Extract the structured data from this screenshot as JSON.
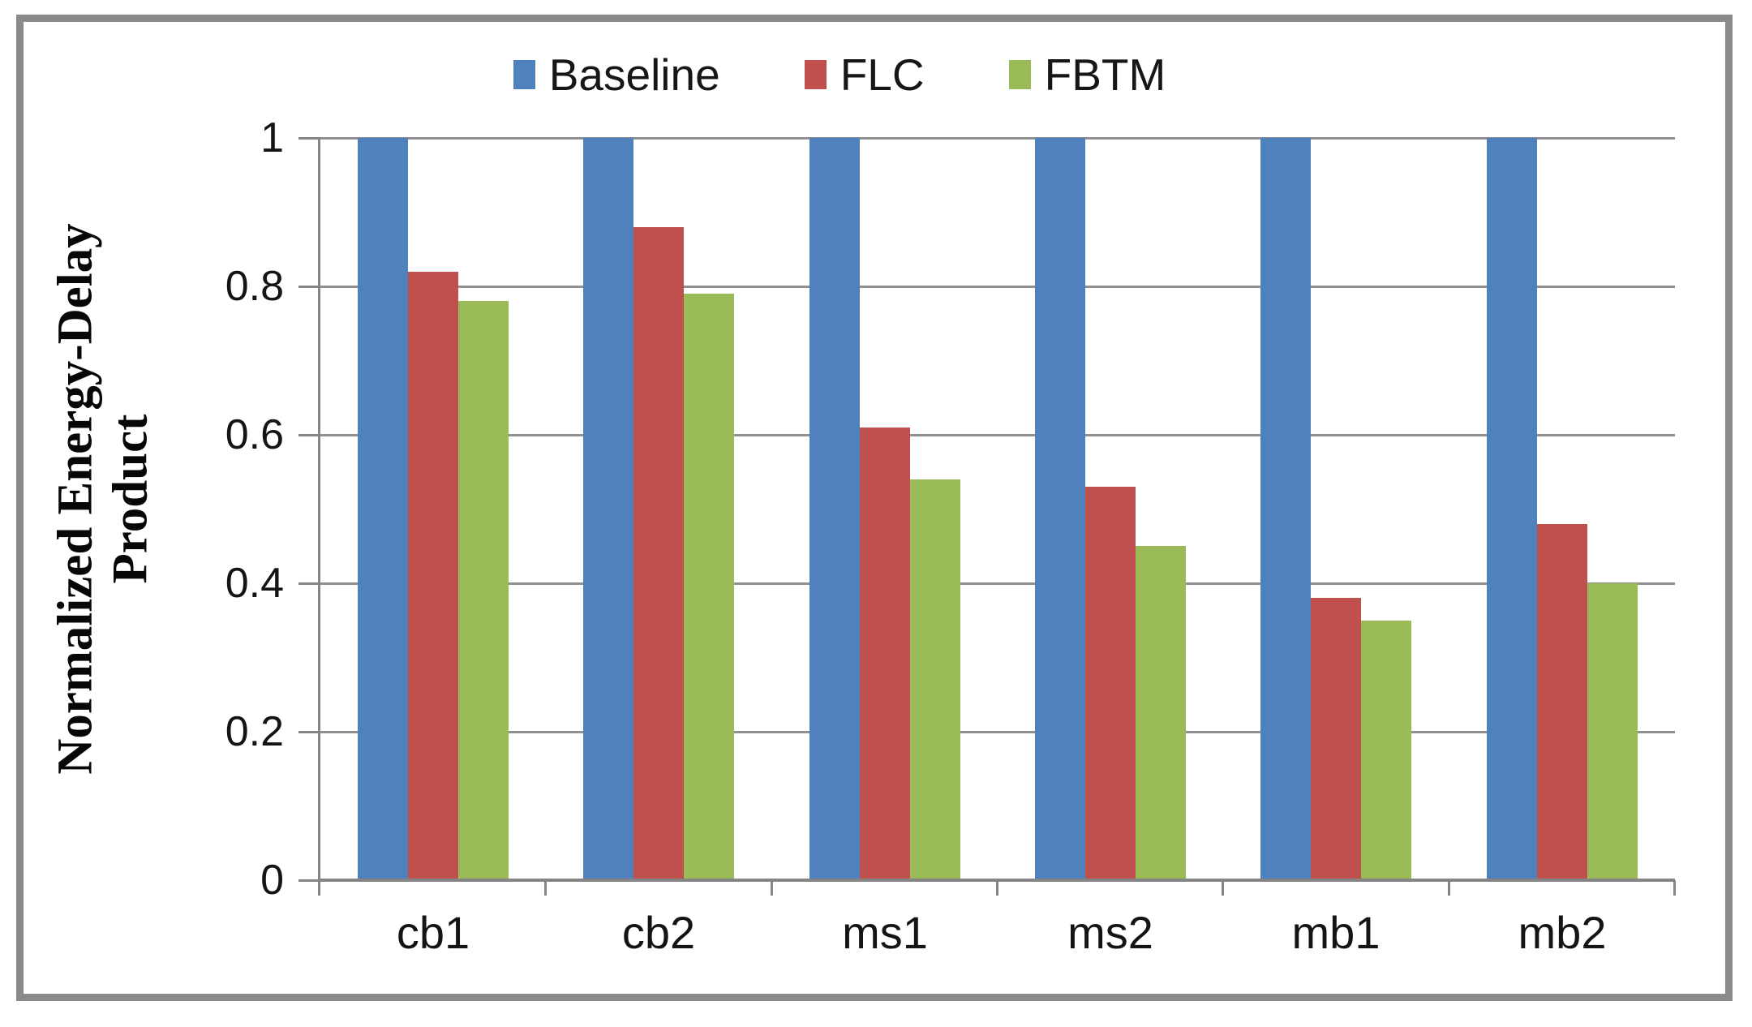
{
  "chart_data": {
    "type": "bar",
    "title": "",
    "categories": [
      "cb1",
      "cb2",
      "ms1",
      "ms2",
      "mb1",
      "mb2"
    ],
    "series": [
      {
        "name": "Baseline",
        "color": "#4F81BD",
        "values": [
          1,
          1,
          1,
          1,
          1,
          1
        ]
      },
      {
        "name": "FLC",
        "color": "#C0504D",
        "values": [
          0.82,
          0.88,
          0.61,
          0.53,
          0.38,
          0.48
        ]
      },
      {
        "name": "FBTM",
        "color": "#9BBB59",
        "values": [
          0.78,
          0.79,
          0.54,
          0.45,
          0.35,
          0.4
        ]
      }
    ],
    "xlabel": "",
    "ylabel": "Normalized Energy-Delay Product",
    "ylabel_lines": [
      "Normalized Energy-Delay",
      "Product"
    ],
    "ylim": [
      0,
      1
    ],
    "yticks": [
      0,
      0.2,
      0.4,
      0.6,
      0.8,
      1
    ],
    "ytick_labels": [
      "0",
      "0.2",
      "0.4",
      "0.6",
      "0.8",
      "1"
    ],
    "grid": true,
    "legend_position": "top"
  },
  "colors": {
    "baseline_blue": "#4F81BD",
    "flc_red": "#C0504D",
    "fbtm_green": "#9BBB59",
    "gridline_gray": "#909090",
    "axis_gray": "#858585",
    "border_gray": "#8a8a8a",
    "text_black": "#111111",
    "background_white": "#ffffff"
  }
}
